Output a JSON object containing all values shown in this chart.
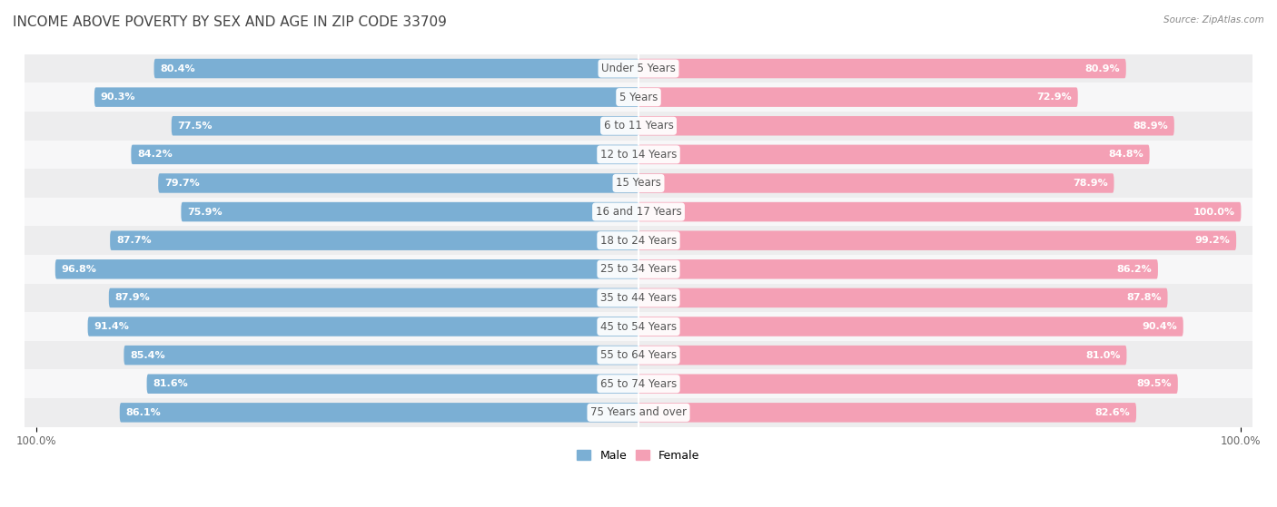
{
  "title": "INCOME ABOVE POVERTY BY SEX AND AGE IN ZIP CODE 33709",
  "source": "Source: ZipAtlas.com",
  "categories": [
    "Under 5 Years",
    "5 Years",
    "6 to 11 Years",
    "12 to 14 Years",
    "15 Years",
    "16 and 17 Years",
    "18 to 24 Years",
    "25 to 34 Years",
    "35 to 44 Years",
    "45 to 54 Years",
    "55 to 64 Years",
    "65 to 74 Years",
    "75 Years and over"
  ],
  "male_values": [
    80.4,
    90.3,
    77.5,
    84.2,
    79.7,
    75.9,
    87.7,
    96.8,
    87.9,
    91.4,
    85.4,
    81.6,
    86.1
  ],
  "female_values": [
    80.9,
    72.9,
    88.9,
    84.8,
    78.9,
    100.0,
    99.2,
    86.2,
    87.8,
    90.4,
    81.0,
    89.5,
    82.6
  ],
  "male_color": "#7bafd4",
  "female_color": "#f4a0b5",
  "male_label": "Male",
  "female_label": "Female",
  "background_color": "#ffffff",
  "row_bg_even": "#ededee",
  "row_bg_odd": "#f7f7f8",
  "title_fontsize": 11,
  "label_fontsize": 8.5,
  "value_fontsize": 8,
  "max_value": 100.0
}
